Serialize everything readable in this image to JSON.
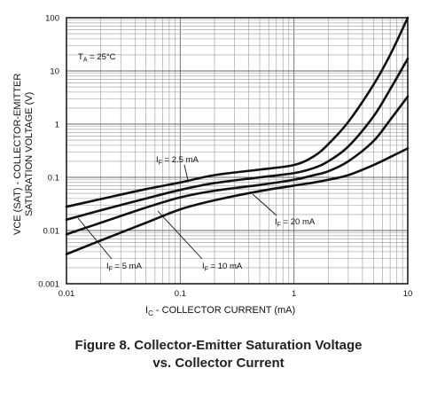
{
  "chart_data": {
    "type": "line",
    "x_scale": "log",
    "y_scale": "log",
    "xlim": [
      0.01,
      10
    ],
    "ylim": [
      0.001,
      100
    ],
    "grid": true,
    "xlabel": "IC - COLLECTOR CURRENT (mA)",
    "xlabel_main": "I",
    "xlabel_sub": "C",
    "xlabel_rest": " - COLLECTOR CURRENT (mA)",
    "ylabel_line1": "VCE (SAT) - COLLECTOR-EMITTER",
    "ylabel_line2": "SATURATION VOLTAGE (V)",
    "x_ticks": [
      "0.01",
      "0.1",
      "1",
      "10"
    ],
    "y_ticks": [
      "100",
      "10",
      "1",
      "0.1",
      "0.01",
      "0.001"
    ],
    "condition": "TA = 25°C",
    "series": [
      {
        "name": "IF = 2.5 mA",
        "x": [
          0.01,
          0.02,
          0.05,
          0.1,
          0.2,
          0.5,
          1,
          1.5,
          2,
          3,
          5,
          7,
          10
        ],
        "y": [
          0.028,
          0.039,
          0.06,
          0.08,
          0.11,
          0.14,
          0.17,
          0.25,
          0.42,
          1.1,
          5.5,
          20,
          100
        ]
      },
      {
        "name": "IF = 5 mA",
        "x": [
          0.01,
          0.02,
          0.05,
          0.1,
          0.2,
          0.5,
          1,
          1.5,
          2,
          3,
          5,
          7,
          10
        ],
        "y": [
          0.016,
          0.024,
          0.04,
          0.058,
          0.078,
          0.1,
          0.12,
          0.15,
          0.2,
          0.38,
          1.4,
          4.5,
          17
        ]
      },
      {
        "name": "IF = 10 mA",
        "x": [
          0.01,
          0.02,
          0.05,
          0.1,
          0.2,
          0.5,
          1,
          1.5,
          2,
          3,
          5,
          7,
          10
        ],
        "y": [
          0.0085,
          0.014,
          0.027,
          0.042,
          0.056,
          0.072,
          0.09,
          0.11,
          0.13,
          0.2,
          0.48,
          1.2,
          3.3
        ]
      },
      {
        "name": "IF = 20 mA",
        "x": [
          0.01,
          0.02,
          0.05,
          0.1,
          0.2,
          0.5,
          1,
          1.5,
          2,
          3,
          5,
          7,
          10
        ],
        "y": [
          0.0036,
          0.0065,
          0.014,
          0.025,
          0.037,
          0.055,
          0.07,
          0.08,
          0.09,
          0.11,
          0.17,
          0.24,
          0.35
        ]
      }
    ],
    "annotations": [
      {
        "main": "I",
        "sub": "F",
        "rest": " = 2.5 mA",
        "series": "IF = 2.5 mA"
      },
      {
        "main": "I",
        "sub": "F",
        "rest": " = 5 mA",
        "series": "IF = 5 mA"
      },
      {
        "main": "I",
        "sub": "F",
        "rest": " = 10 mA",
        "series": "IF = 10 mA"
      },
      {
        "main": "I",
        "sub": "F",
        "rest": " = 20 mA",
        "series": "IF = 20 mA"
      }
    ],
    "temp_main": "T",
    "temp_sub": "A",
    "temp_rest": " = 25°C"
  },
  "caption": {
    "line1": "Figure 8. Collector-Emitter Saturation Voltage",
    "line2": "vs. Collector Current"
  }
}
